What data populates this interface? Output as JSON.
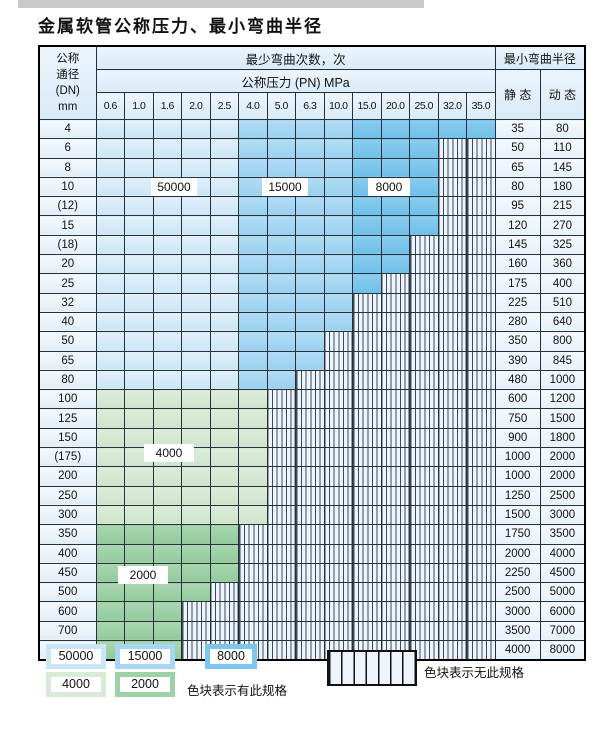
{
  "title": "金属软管公称压力、最小弯曲半径",
  "table": {
    "header": {
      "dn_label_lines": [
        "公称",
        "通径",
        "(DN)",
        "mm"
      ],
      "bend_times_label": "最少弯曲次数，次",
      "pressure_label": "公称压力 (PN) MPa",
      "radius_label": "最小弯曲半径",
      "static_label": "静 态",
      "dynamic_label": "动 态"
    },
    "pressure_columns": [
      "0.6",
      "1.0",
      "1.6",
      "2.0",
      "2.5",
      "4.0",
      "5.0",
      "6.3",
      "10.0",
      "15.0",
      "20.0",
      "25.0",
      "32.0",
      "35.0"
    ],
    "bend_cycle_zones": {
      "blue_by_column": [
        {
          "columns": "0.6-2.5",
          "cycles": "50000"
        },
        {
          "columns": "4.0-10.0",
          "cycles": "15000"
        },
        {
          "columns": "15.0-35.0",
          "cycles": "8000"
        }
      ],
      "green_by_row": [
        {
          "rows": "100-300",
          "cycles": "4000"
        },
        {
          "rows": "350-800",
          "cycles": "2000"
        }
      ]
    },
    "region_labels": [
      "50000",
      "15000",
      "8000",
      "4000",
      "2000"
    ],
    "rows": [
      {
        "dn": "4",
        "colored_through": "35.0",
        "zone": "blue",
        "static": "35",
        "dynamic": "80"
      },
      {
        "dn": "6",
        "colored_through": "25.0",
        "zone": "blue",
        "static": "50",
        "dynamic": "110"
      },
      {
        "dn": "8",
        "colored_through": "25.0",
        "zone": "blue",
        "static": "65",
        "dynamic": "145"
      },
      {
        "dn": "10",
        "colored_through": "25.0",
        "zone": "blue",
        "static": "80",
        "dynamic": "180"
      },
      {
        "dn": "(12)",
        "colored_through": "25.0",
        "zone": "blue",
        "static": "95",
        "dynamic": "215"
      },
      {
        "dn": "15",
        "colored_through": "25.0",
        "zone": "blue",
        "static": "120",
        "dynamic": "270"
      },
      {
        "dn": "(18)",
        "colored_through": "20.0",
        "zone": "blue",
        "static": "145",
        "dynamic": "325"
      },
      {
        "dn": "20",
        "colored_through": "20.0",
        "zone": "blue",
        "static": "160",
        "dynamic": "360"
      },
      {
        "dn": "25",
        "colored_through": "15.0",
        "zone": "blue",
        "static": "175",
        "dynamic": "400"
      },
      {
        "dn": "32",
        "colored_through": "10.0",
        "zone": "blue",
        "static": "225",
        "dynamic": "510"
      },
      {
        "dn": "40",
        "colored_through": "10.0",
        "zone": "blue",
        "static": "280",
        "dynamic": "640"
      },
      {
        "dn": "50",
        "colored_through": "6.3",
        "zone": "blue",
        "static": "350",
        "dynamic": "800"
      },
      {
        "dn": "65",
        "colored_through": "6.3",
        "zone": "blue",
        "static": "390",
        "dynamic": "845"
      },
      {
        "dn": "80",
        "colored_through": "5.0",
        "zone": "blue",
        "static": "480",
        "dynamic": "1000"
      },
      {
        "dn": "100",
        "colored_through": "4.0",
        "zone": "green-4000",
        "static": "600",
        "dynamic": "1200"
      },
      {
        "dn": "125",
        "colored_through": "4.0",
        "zone": "green-4000",
        "static": "750",
        "dynamic": "1500"
      },
      {
        "dn": "150",
        "colored_through": "4.0",
        "zone": "green-4000",
        "static": "900",
        "dynamic": "1800"
      },
      {
        "dn": "(175)",
        "colored_through": "4.0",
        "zone": "green-4000",
        "static": "1000",
        "dynamic": "2000"
      },
      {
        "dn": "200",
        "colored_through": "4.0",
        "zone": "green-4000",
        "static": "1000",
        "dynamic": "2000"
      },
      {
        "dn": "250",
        "colored_through": "4.0",
        "zone": "green-4000",
        "static": "1250",
        "dynamic": "2500"
      },
      {
        "dn": "300",
        "colored_through": "4.0",
        "zone": "green-4000",
        "static": "1500",
        "dynamic": "3000"
      },
      {
        "dn": "350",
        "colored_through": "2.5",
        "zone": "green-2000",
        "static": "1750",
        "dynamic": "3500"
      },
      {
        "dn": "400",
        "colored_through": "2.5",
        "zone": "green-2000",
        "static": "2000",
        "dynamic": "4000"
      },
      {
        "dn": "450",
        "colored_through": "2.5",
        "zone": "green-2000",
        "static": "2250",
        "dynamic": "4500"
      },
      {
        "dn": "500",
        "colored_through": "2.0",
        "zone": "green-2000",
        "static": "2500",
        "dynamic": "5000"
      },
      {
        "dn": "600",
        "colored_through": "1.6",
        "zone": "green-2000",
        "static": "3000",
        "dynamic": "6000"
      },
      {
        "dn": "700",
        "colored_through": "1.6",
        "zone": "green-2000",
        "static": "3500",
        "dynamic": "7000"
      },
      {
        "dn": "800",
        "colored_through": "1.6",
        "zone": "green-2000",
        "static": "4000",
        "dynamic": "8000"
      }
    ]
  },
  "legend": {
    "has_spec_items": [
      {
        "label": "50000",
        "color": "#cbe6f8"
      },
      {
        "label": "15000",
        "color": "#a5d6f2"
      },
      {
        "label": "8000",
        "color": "#7cc5ec"
      },
      {
        "label": "4000",
        "color": "#d8ebd6"
      },
      {
        "label": "2000",
        "color": "#9dd2a5"
      }
    ],
    "has_spec_text": "色块表示有此规格",
    "no_spec_text": "色块表示无此规格"
  },
  "colors": {
    "blue_light": "#cbe6f8",
    "blue_mid": "#a5d6f2",
    "blue_dark": "#7cc5ec",
    "green_light": "#d8ebd6",
    "green_mid": "#9dd2a5",
    "hatch_bg": "#edf4fb",
    "grid_line": "#26313a"
  }
}
